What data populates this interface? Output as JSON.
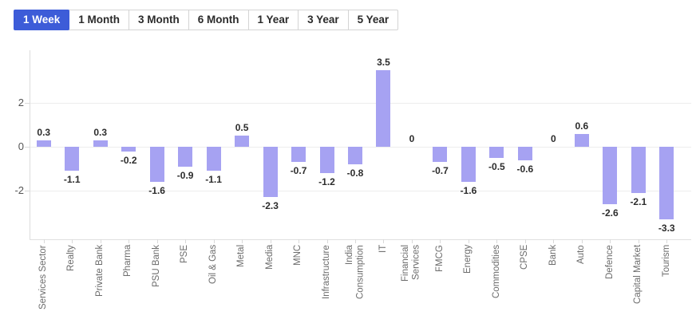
{
  "colors": {
    "accent_blue": "#3d5cd8",
    "bar_fill": "#a6a2f2",
    "gridline": "#ededed",
    "axis_line": "#dcdcdc",
    "value_label_text": "#2c2c2c",
    "axis_label_text": "#6b6b6b"
  },
  "tabs": {
    "items": [
      {
        "label": "1 Week",
        "selected": true
      },
      {
        "label": "1 Month",
        "selected": false
      },
      {
        "label": "3 Month",
        "selected": false
      },
      {
        "label": "6 Month",
        "selected": false
      },
      {
        "label": "1 Year",
        "selected": false
      },
      {
        "label": "3 Year",
        "selected": false
      },
      {
        "label": "5 Year",
        "selected": false
      }
    ]
  },
  "chart_data": {
    "type": "bar",
    "title": "",
    "xlabel": "",
    "ylabel": "",
    "categories": [
      "Services Sector",
      "Realty",
      "Private Bank",
      "Pharma",
      "PSU Bank",
      "PSE",
      "Oil & Gas",
      "Metal",
      "Media",
      "MNC",
      "Infrastructure",
      "India\nConsumption",
      "IT",
      "Financial\nServices",
      "FMCG",
      "Energy",
      "Commodities",
      "CPSE",
      "Bank",
      "Auto",
      "Defence",
      "Capital Market",
      "Tourism"
    ],
    "values": [
      0.3,
      -1.1,
      0.3,
      -0.2,
      -1.6,
      -0.9,
      -1.1,
      0.5,
      -2.3,
      -0.7,
      -1.2,
      -0.8,
      3.5,
      0,
      -0.7,
      -1.6,
      -0.5,
      -0.6,
      0,
      0.6,
      -2.6,
      -2.1,
      -3.3
    ],
    "value_labels": [
      "0.3",
      "-1.1",
      "0.3",
      "-0.2",
      "-1.6",
      "-0.9",
      "-1.1",
      "0.5",
      "-2.3",
      "-0.7",
      "-1.2",
      "-0.8",
      "3.5",
      "0",
      "-0.7",
      "-1.6",
      "-0.5",
      "-0.6",
      "0",
      "0.6",
      "-2.6",
      "-2.1",
      "-3.3"
    ],
    "yticks": [
      2,
      0,
      -2
    ],
    "ylim": [
      -4.2,
      4.4
    ],
    "grid": true,
    "legend": false,
    "bar_color": "#a6a2f2"
  }
}
